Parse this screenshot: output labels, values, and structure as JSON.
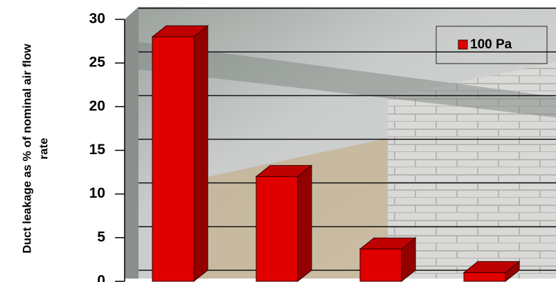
{
  "chart_data": {
    "type": "bar3d",
    "ylabel": [
      "Duct leakage as % of nominal air flow",
      "rate"
    ],
    "categories": [
      null,
      null,
      null,
      null
    ],
    "series": [
      {
        "name": "100 Pa",
        "color": "#e00000",
        "values": [
          28,
          12,
          3.7,
          1
        ]
      }
    ],
    "ylim": [
      0,
      30
    ],
    "yticks": [
      0,
      5,
      10,
      15,
      20,
      25,
      30
    ],
    "grid": true,
    "legend": "top-right"
  }
}
